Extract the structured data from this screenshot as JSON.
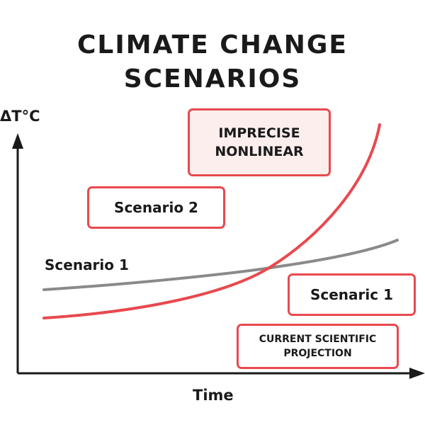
{
  "title": {
    "line1": "CLIMATE CHANGE",
    "line2": "SCENARIOS"
  },
  "axes": {
    "y_label": "ΔT°C",
    "x_label": "Time"
  },
  "labels": {
    "scenario1_curve": "Scenario 1",
    "box_imprecise": "IMPRECISE\nNONLINEAR",
    "box_scenario2": "Scenario 2",
    "box_scenaric1": "Scenaric 1",
    "box_current": "CURRENT SCIENTIFIC\nPROJECTION"
  },
  "colors": {
    "accent_red": "#e8494e",
    "curve_gray": "#8a8a8a",
    "box_fill": "#fdeeee",
    "axis": "#1a1a1a"
  }
}
